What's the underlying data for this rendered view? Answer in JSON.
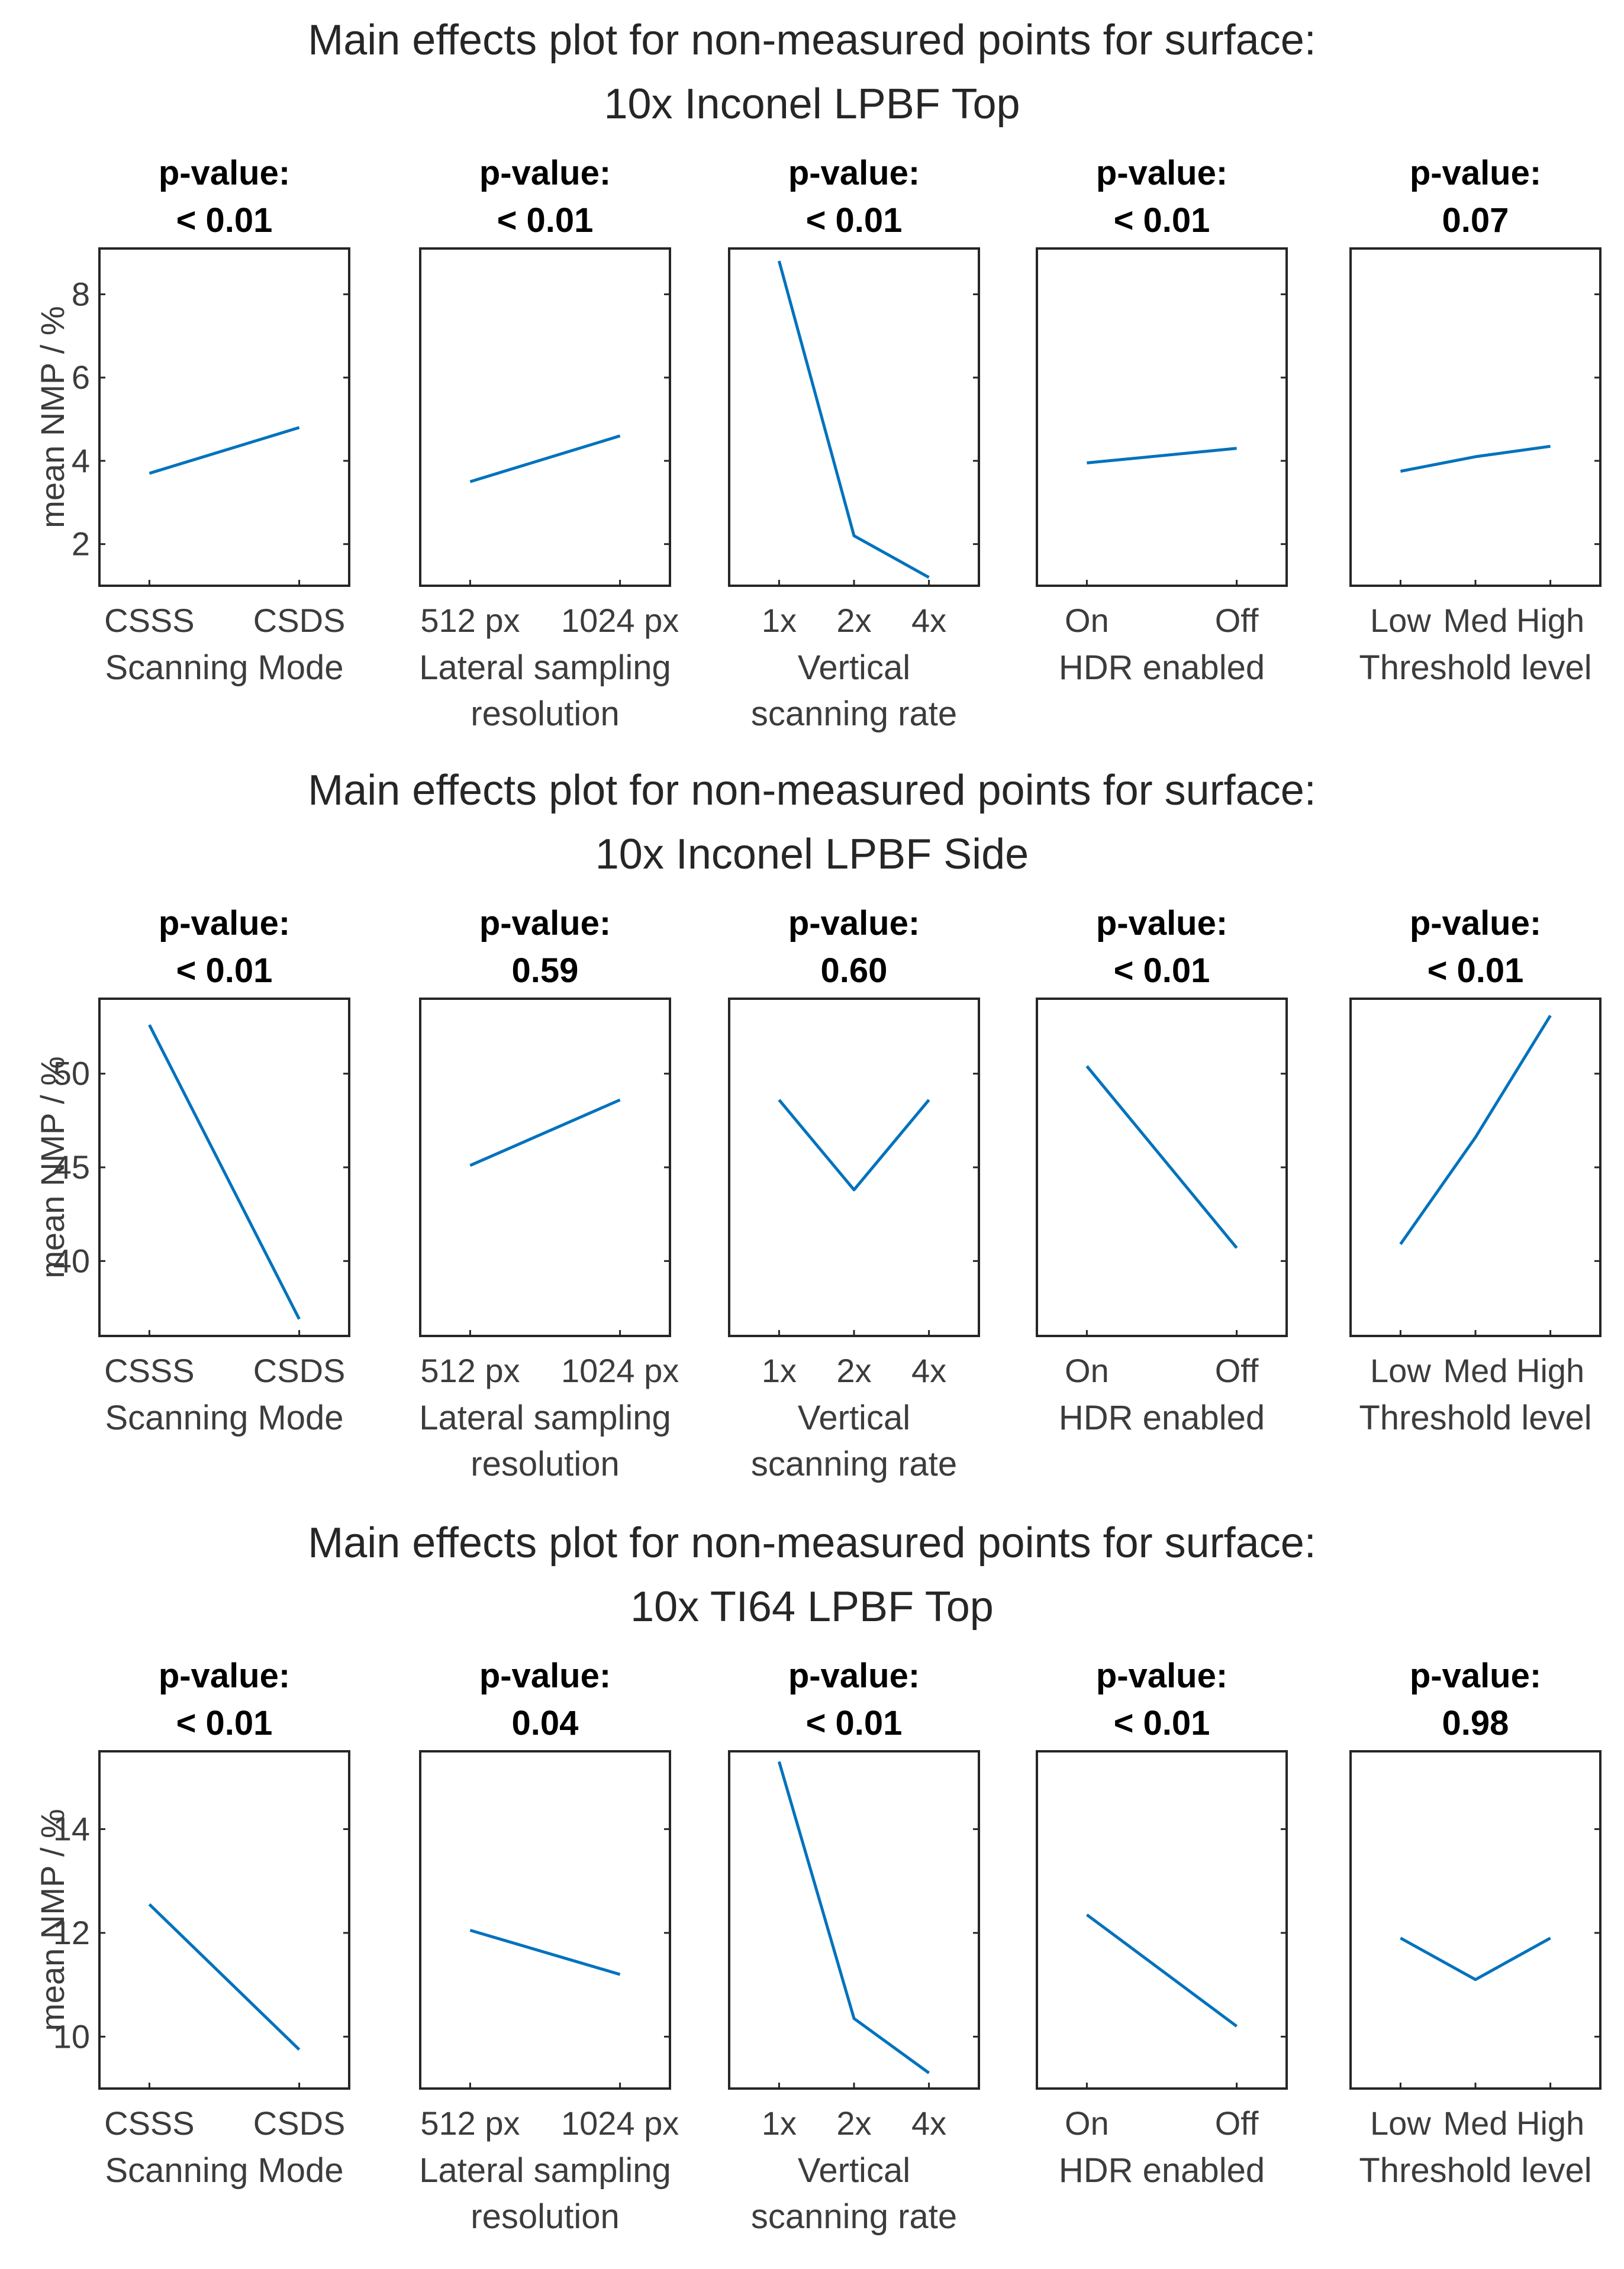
{
  "colors": {
    "line": "#0072bd",
    "axis": "#262626",
    "text": "#3c3c3c"
  },
  "chart_data": [
    {
      "type": "line",
      "title": "Main effects plot for non-measured points for surface:",
      "subtitle": "10x Inconel LPBF Top",
      "ylabel": "mean NMP / %",
      "ylim": [
        1,
        9.1
      ],
      "yticks": [
        2,
        4,
        6,
        8
      ],
      "panels": [
        {
          "p_label": "p-value:",
          "p_value": "< 0.01",
          "xlabel": [
            "Scanning Mode"
          ],
          "categories": [
            "CSSS",
            "CSDS"
          ],
          "values": [
            3.7,
            4.8
          ]
        },
        {
          "p_label": "p-value:",
          "p_value": "< 0.01",
          "xlabel": [
            "Lateral sampling",
            "resolution"
          ],
          "categories": [
            "512 px",
            "1024 px"
          ],
          "values": [
            3.5,
            4.6
          ]
        },
        {
          "p_label": "p-value:",
          "p_value": "< 0.01",
          "xlabel": [
            "Vertical",
            "scanning rate"
          ],
          "categories": [
            "1x",
            "2x",
            "4x"
          ],
          "values": [
            8.8,
            2.2,
            1.2
          ]
        },
        {
          "p_label": "p-value:",
          "p_value": "< 0.01",
          "xlabel": [
            "HDR enabled"
          ],
          "categories": [
            "On",
            "Off"
          ],
          "values": [
            3.95,
            4.3
          ]
        },
        {
          "p_label": "p-value:",
          "p_value": "0.07",
          "xlabel": [
            "Threshold level"
          ],
          "categories": [
            "Low",
            "Med",
            "High"
          ],
          "values": [
            3.75,
            4.1,
            4.35
          ]
        }
      ]
    },
    {
      "type": "line",
      "title": "Main effects plot for non-measured points for surface:",
      "subtitle": "10x Inconel LPBF Side",
      "ylabel": "mean NMP / %",
      "ylim": [
        36,
        54
      ],
      "yticks": [
        40,
        45,
        50
      ],
      "panels": [
        {
          "p_label": "p-value:",
          "p_value": "< 0.01",
          "xlabel": [
            "Scanning Mode"
          ],
          "categories": [
            "CSSS",
            "CSDS"
          ],
          "values": [
            52.6,
            36.9
          ]
        },
        {
          "p_label": "p-value:",
          "p_value": "0.59",
          "xlabel": [
            "Lateral sampling",
            "resolution"
          ],
          "categories": [
            "512 px",
            "1024 px"
          ],
          "values": [
            45.1,
            48.6
          ]
        },
        {
          "p_label": "p-value:",
          "p_value": "0.60",
          "xlabel": [
            "Vertical",
            "scanning rate"
          ],
          "categories": [
            "1x",
            "2x",
            "4x"
          ],
          "values": [
            48.6,
            43.8,
            48.6
          ]
        },
        {
          "p_label": "p-value:",
          "p_value": "< 0.01",
          "xlabel": [
            "HDR enabled"
          ],
          "categories": [
            "On",
            "Off"
          ],
          "values": [
            50.4,
            40.7
          ]
        },
        {
          "p_label": "p-value:",
          "p_value": "< 0.01",
          "xlabel": [
            "Threshold level"
          ],
          "categories": [
            "Low",
            "Med",
            "High"
          ],
          "values": [
            40.9,
            46.6,
            53.1
          ]
        }
      ]
    },
    {
      "type": "line",
      "title": "Main effects plot for non-measured points for surface:",
      "subtitle": "10x TI64 LPBF Top",
      "ylabel": "mean NMP / %",
      "ylim": [
        9,
        15.5
      ],
      "yticks": [
        10,
        12,
        14
      ],
      "panels": [
        {
          "p_label": "p-value:",
          "p_value": "< 0.01",
          "xlabel": [
            "Scanning Mode"
          ],
          "categories": [
            "CSSS",
            "CSDS"
          ],
          "values": [
            12.55,
            9.75
          ]
        },
        {
          "p_label": "p-value:",
          "p_value": "0.04",
          "xlabel": [
            "Lateral sampling",
            "resolution"
          ],
          "categories": [
            "512 px",
            "1024 px"
          ],
          "values": [
            12.05,
            11.2
          ]
        },
        {
          "p_label": "p-value:",
          "p_value": "< 0.01",
          "xlabel": [
            "Vertical",
            "scanning rate"
          ],
          "categories": [
            "1x",
            "2x",
            "4x"
          ],
          "values": [
            15.3,
            10.35,
            9.3
          ]
        },
        {
          "p_label": "p-value:",
          "p_value": "< 0.01",
          "xlabel": [
            "HDR enabled"
          ],
          "categories": [
            "On",
            "Off"
          ],
          "values": [
            12.35,
            10.2
          ]
        },
        {
          "p_label": "p-value:",
          "p_value": "0.98",
          "xlabel": [
            "Threshold level"
          ],
          "categories": [
            "Low",
            "Med",
            "High"
          ],
          "values": [
            11.9,
            11.1,
            11.9
          ]
        }
      ]
    }
  ]
}
